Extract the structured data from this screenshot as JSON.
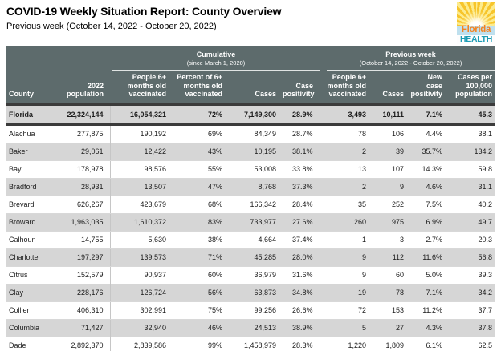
{
  "page": {
    "title": "COVID-19 Weekly Situation Report: County Overview",
    "subtitle": "Previous week (October 14, 2022 - October 20, 2022)"
  },
  "logo": {
    "word1": "Florida",
    "word2": "HEALTH"
  },
  "table": {
    "column_groups": [
      {
        "label": "Cumulative",
        "sublabel": "(since March 1, 2020)",
        "span": 4
      },
      {
        "label": "Previous week",
        "sublabel": "(October 14, 2022 - October 20, 2022)",
        "span": 4
      }
    ],
    "columns": [
      "County",
      "2022 population",
      "People 6+ months old vaccinated",
      "Percent of 6+ months old vaccinated",
      "Cases",
      "Case positivity",
      "People 6+ months old vaccinated",
      "Cases",
      "New case positivity",
      "Cases per 100,000 population"
    ],
    "state_row": [
      "Florida",
      "22,324,144",
      "16,054,321",
      "72%",
      "7,149,300",
      "28.9%",
      "3,493",
      "10,111",
      "7.1%",
      "45.3"
    ],
    "rows": [
      [
        "Alachua",
        "277,875",
        "190,192",
        "69%",
        "84,349",
        "28.7%",
        "78",
        "106",
        "4.4%",
        "38.1"
      ],
      [
        "Baker",
        "29,061",
        "12,422",
        "43%",
        "10,195",
        "38.1%",
        "2",
        "39",
        "35.7%",
        "134.2"
      ],
      [
        "Bay",
        "178,978",
        "98,576",
        "55%",
        "53,008",
        "33.8%",
        "13",
        "107",
        "14.3%",
        "59.8"
      ],
      [
        "Bradford",
        "28,931",
        "13,507",
        "47%",
        "8,768",
        "37.3%",
        "2",
        "9",
        "4.6%",
        "31.1"
      ],
      [
        "Brevard",
        "626,267",
        "423,679",
        "68%",
        "166,342",
        "28.4%",
        "35",
        "252",
        "7.5%",
        "40.2"
      ],
      [
        "Broward",
        "1,963,035",
        "1,610,372",
        "83%",
        "733,977",
        "27.6%",
        "260",
        "975",
        "6.9%",
        "49.7"
      ],
      [
        "Calhoun",
        "14,755",
        "5,630",
        "38%",
        "4,664",
        "37.4%",
        "1",
        "3",
        "2.7%",
        "20.3"
      ],
      [
        "Charlotte",
        "197,297",
        "139,573",
        "71%",
        "45,285",
        "28.0%",
        "9",
        "112",
        "11.6%",
        "56.8"
      ],
      [
        "Citrus",
        "152,579",
        "90,937",
        "60%",
        "36,979",
        "31.6%",
        "9",
        "60",
        "5.0%",
        "39.3"
      ],
      [
        "Clay",
        "228,176",
        "126,724",
        "56%",
        "63,873",
        "34.8%",
        "19",
        "78",
        "7.1%",
        "34.2"
      ],
      [
        "Collier",
        "406,310",
        "302,991",
        "75%",
        "99,256",
        "26.6%",
        "72",
        "153",
        "11.2%",
        "37.7"
      ],
      [
        "Columbia",
        "71,427",
        "32,940",
        "46%",
        "24,513",
        "38.9%",
        "5",
        "27",
        "4.3%",
        "37.8"
      ],
      [
        "Dade",
        "2,892,370",
        "2,839,586",
        "99%",
        "1,458,979",
        "28.3%",
        "1,220",
        "1,809",
        "6.1%",
        "62.5"
      ]
    ]
  },
  "colors": {
    "header_bg": "#5d6b6c",
    "divider_bar": "#3b3b3b",
    "row_stripe": "#d6d6d6",
    "logo_orange": "#f58220",
    "logo_teal": "#1d9cb5",
    "logo_sun": "#f7c52c",
    "logo_band": "#bfe0ee"
  }
}
